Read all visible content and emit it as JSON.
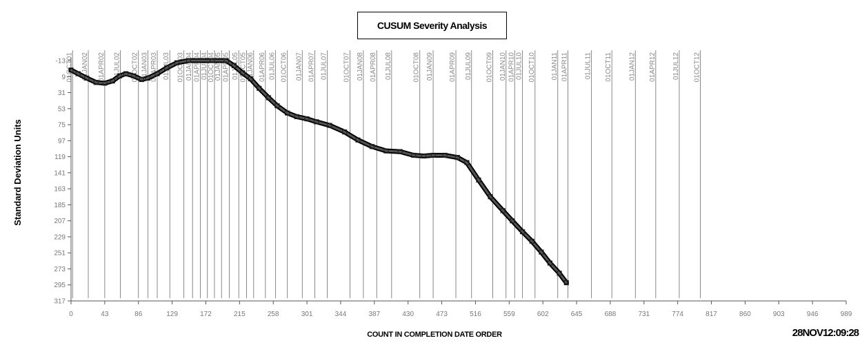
{
  "chart_data": {
    "type": "line",
    "title": "CUSUM Severity Analysis",
    "xlabel": "COUNT IN COMPLETION DATE ORDER",
    "ylabel": "Standard Deviation Units",
    "xlim": [
      0,
      989
    ],
    "ylim": [
      -13,
      317
    ],
    "y_inverted": true,
    "x_ticks": [
      0,
      43,
      86,
      129,
      172,
      215,
      258,
      301,
      344,
      387,
      430,
      473,
      516,
      559,
      602,
      645,
      688,
      731,
      774,
      817,
      860,
      903,
      946,
      989
    ],
    "x_tick_labels": [
      "0",
      "43",
      "86",
      "129",
      "172",
      "215",
      "258",
      "301",
      "344",
      "387",
      "430",
      "473",
      "516",
      "559",
      "602",
      "645",
      "688",
      "731",
      "774",
      "817",
      "860",
      "903",
      "946",
      "989"
    ],
    "y_ticks": [
      -13,
      9,
      31,
      53,
      75,
      97,
      119,
      141,
      163,
      185,
      207,
      229,
      251,
      273,
      295,
      317
    ],
    "y_tick_labels": [
      "-13",
      "9",
      "31",
      "53",
      "75",
      "97",
      "119",
      "141",
      "163",
      "185",
      "207",
      "229",
      "251",
      "273",
      "295",
      "317"
    ],
    "reference_lines": [
      {
        "x": 2,
        "label": "01OCT01"
      },
      {
        "x": 22,
        "label": "01JAN02"
      },
      {
        "x": 43,
        "label": "01APR02"
      },
      {
        "x": 63,
        "label": "01JUL02"
      },
      {
        "x": 86,
        "label": "01OCT02"
      },
      {
        "x": 98,
        "label": "01JAN03"
      },
      {
        "x": 110,
        "label": "01APR03"
      },
      {
        "x": 126,
        "label": "01JUL03"
      },
      {
        "x": 144,
        "label": "01OCT03"
      },
      {
        "x": 155,
        "label": "01JAN04"
      },
      {
        "x": 165,
        "label": "01APR04"
      },
      {
        "x": 174,
        "label": "01JUL04"
      },
      {
        "x": 183,
        "label": "01OCT04"
      },
      {
        "x": 192,
        "label": "01JAN05"
      },
      {
        "x": 202,
        "label": "01APR05"
      },
      {
        "x": 214,
        "label": "01JUL05"
      },
      {
        "x": 224,
        "label": "01OCT05"
      },
      {
        "x": 233,
        "label": "01JAN06"
      },
      {
        "x": 248,
        "label": "01APR06"
      },
      {
        "x": 261,
        "label": "01JUL06"
      },
      {
        "x": 276,
        "label": "01OCT06"
      },
      {
        "x": 295,
        "label": "01JAN07"
      },
      {
        "x": 311,
        "label": "01APR07"
      },
      {
        "x": 327,
        "label": "01JUL07"
      },
      {
        "x": 356,
        "label": "01OCT07"
      },
      {
        "x": 373,
        "label": "01JAN08"
      },
      {
        "x": 390,
        "label": "01APR08"
      },
      {
        "x": 409,
        "label": "01JUL08"
      },
      {
        "x": 445,
        "label": "01OCT08"
      },
      {
        "x": 462,
        "label": "01JAN09"
      },
      {
        "x": 491,
        "label": "01APR09"
      },
      {
        "x": 511,
        "label": "01JUL09"
      },
      {
        "x": 538,
        "label": "01OCT09"
      },
      {
        "x": 555,
        "label": "01JAN10"
      },
      {
        "x": 566,
        "label": "01APR10"
      },
      {
        "x": 576,
        "label": "01JUL10"
      },
      {
        "x": 592,
        "label": "01OCT10"
      },
      {
        "x": 621,
        "label": "01JAN11"
      },
      {
        "x": 634,
        "label": "01APR11"
      },
      {
        "x": 664,
        "label": "01JUL11"
      },
      {
        "x": 690,
        "label": "01OCT11"
      },
      {
        "x": 720,
        "label": "01JAN12"
      },
      {
        "x": 746,
        "label": "01APR12"
      },
      {
        "x": 776,
        "label": "01JUL12"
      },
      {
        "x": 803,
        "label": "01OCT12"
      }
    ],
    "series": [
      {
        "values": [
          {
            "x": 0,
            "y": 0
          },
          {
            "x": 9,
            "y": 5
          },
          {
            "x": 20,
            "y": 11
          },
          {
            "x": 32,
            "y": 17
          },
          {
            "x": 43,
            "y": 18
          },
          {
            "x": 53,
            "y": 15
          },
          {
            "x": 62,
            "y": 8
          },
          {
            "x": 70,
            "y": 5
          },
          {
            "x": 80,
            "y": 8
          },
          {
            "x": 90,
            "y": 13
          },
          {
            "x": 98,
            "y": 11
          },
          {
            "x": 110,
            "y": 5
          },
          {
            "x": 122,
            "y": -3
          },
          {
            "x": 135,
            "y": -10
          },
          {
            "x": 150,
            "y": -13
          },
          {
            "x": 180,
            "y": -13
          },
          {
            "x": 198,
            "y": -13
          },
          {
            "x": 208,
            "y": -6
          },
          {
            "x": 219,
            "y": 4
          },
          {
            "x": 229,
            "y": 12
          },
          {
            "x": 240,
            "y": 25
          },
          {
            "x": 252,
            "y": 38
          },
          {
            "x": 263,
            "y": 49
          },
          {
            "x": 276,
            "y": 59
          },
          {
            "x": 288,
            "y": 64
          },
          {
            "x": 301,
            "y": 67
          },
          {
            "x": 313,
            "y": 71
          },
          {
            "x": 330,
            "y": 76
          },
          {
            "x": 349,
            "y": 85
          },
          {
            "x": 366,
            "y": 96
          },
          {
            "x": 384,
            "y": 105
          },
          {
            "x": 402,
            "y": 111
          },
          {
            "x": 420,
            "y": 112
          },
          {
            "x": 437,
            "y": 117
          },
          {
            "x": 450,
            "y": 118
          },
          {
            "x": 462,
            "y": 117
          },
          {
            "x": 477,
            "y": 117
          },
          {
            "x": 493,
            "y": 120
          },
          {
            "x": 505,
            "y": 127
          },
          {
            "x": 520,
            "y": 151
          },
          {
            "x": 535,
            "y": 174
          },
          {
            "x": 551,
            "y": 193
          },
          {
            "x": 563,
            "y": 207
          },
          {
            "x": 576,
            "y": 222
          },
          {
            "x": 588,
            "y": 235
          },
          {
            "x": 600,
            "y": 250
          },
          {
            "x": 611,
            "y": 265
          },
          {
            "x": 623,
            "y": 279
          },
          {
            "x": 632,
            "y": 292
          }
        ]
      }
    ]
  },
  "footer": {
    "timestamp": "28NOV12:09:28"
  }
}
